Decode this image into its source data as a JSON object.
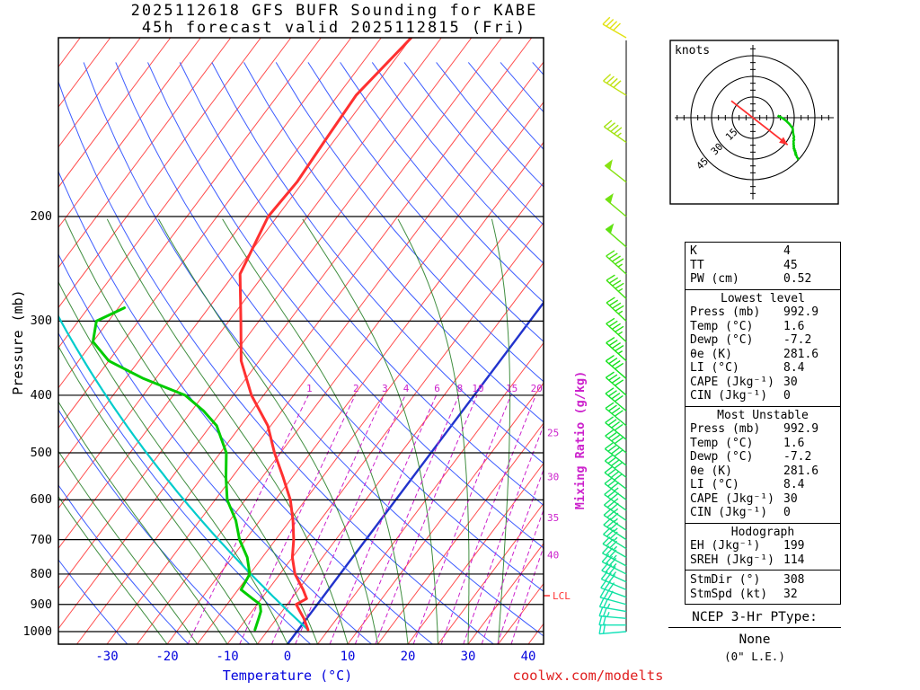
{
  "title": {
    "line1": "2025112618 GFS BUFR Sounding for KABE",
    "line2": "45h forecast valid 2025112815 (Fri)"
  },
  "axes": {
    "pressure_label": "Pressure (mb)",
    "temperature_label": "Temperature (°C)",
    "mixing_ratio_label": "Mixing Ratio (g/kg)",
    "lcl_label": "LCL"
  },
  "watermark": "coolwx.com/modelts",
  "hodograph_panel": {
    "units_label": "knots"
  },
  "stats": {
    "summary": [
      [
        "K",
        "4"
      ],
      [
        "TT",
        "45"
      ],
      [
        "PW (cm)",
        "0.52"
      ]
    ],
    "sections": [
      {
        "header": "Lowest level",
        "rows": [
          [
            "Press (mb)",
            "992.9"
          ],
          [
            "Temp (°C)",
            "1.6"
          ],
          [
            "Dewp (°C)",
            "-7.2"
          ],
          [
            "θe (K)",
            "281.6"
          ],
          [
            "LI (°C)",
            "8.4"
          ],
          [
            "CAPE (Jkg⁻¹)",
            "30"
          ],
          [
            "CIN (Jkg⁻¹)",
            "0"
          ]
        ]
      },
      {
        "header": "Most Unstable",
        "rows": [
          [
            "Press (mb)",
            "992.9"
          ],
          [
            "Temp (°C)",
            "1.6"
          ],
          [
            "Dewp (°C)",
            "-7.2"
          ],
          [
            "θe (K)",
            "281.6"
          ],
          [
            "LI (°C)",
            "8.4"
          ],
          [
            "CAPE (Jkg⁻¹)",
            "30"
          ],
          [
            "CIN (Jkg⁻¹)",
            "0"
          ]
        ]
      },
      {
        "header": "Hodograph",
        "rows": [
          [
            "EH (Jkg⁻¹)",
            "199"
          ],
          [
            "SREH (Jkg⁻¹)",
            "114"
          ]
        ],
        "rows_after_divider": [
          [
            "StmDir (°)",
            "308"
          ],
          [
            "StmSpd (kt)",
            "32"
          ]
        ]
      }
    ]
  },
  "ptype": {
    "title": "NCEP 3-Hr PType:",
    "value": "None",
    "note": "(0\" L.E.)"
  },
  "chart_data": {
    "type": "line",
    "subtype": "skew-t log-p sounding",
    "title": "2025112618 GFS BUFR Sounding for KABE — 45h forecast valid 2025112815 (Fri)",
    "xlabel": "Temperature (°C)",
    "ylabel": "Pressure (mb)",
    "x_range_c": [
      -40,
      45
    ],
    "pressure_range_mb": [
      100,
      1050
    ],
    "pressure_gridlines": [
      200,
      300,
      400,
      500,
      600,
      700,
      800,
      900,
      1000
    ],
    "temperature_ticks": [
      -30,
      -20,
      -10,
      0,
      10,
      20,
      30,
      40
    ],
    "mixing_ratio_inline_labels": [
      1,
      2,
      3,
      4,
      6,
      8,
      10,
      15,
      20
    ],
    "mixing_ratio_edge_labels": [
      25,
      30,
      35,
      40
    ],
    "lcl_mb": 870,
    "parcel": {
      "surface_pressure_mb": 992.9,
      "surface_temp_c": 1.6,
      "surface_dewp_c": -7.2
    },
    "series": [
      {
        "name": "Temperature",
        "color": "#ff3030",
        "points": [
          [
            992.9,
            1.6
          ],
          [
            950,
            -0.5
          ],
          [
            925,
            -2.0
          ],
          [
            900,
            -3.5
          ],
          [
            880,
            -2.5
          ],
          [
            850,
            -4.2
          ],
          [
            800,
            -7.5
          ],
          [
            750,
            -10.0
          ],
          [
            700,
            -12.0
          ],
          [
            650,
            -14.5
          ],
          [
            600,
            -17.5
          ],
          [
            550,
            -21.5
          ],
          [
            500,
            -26.0
          ],
          [
            450,
            -30.5
          ],
          [
            400,
            -37.0
          ],
          [
            350,
            -43.0
          ],
          [
            300,
            -48.0
          ],
          [
            250,
            -54.0
          ],
          [
            200,
            -56.5
          ],
          [
            175,
            -56.0
          ],
          [
            150,
            -56.5
          ],
          [
            125,
            -57.0
          ],
          [
            100,
            -55.0
          ]
        ]
      },
      {
        "name": "Dewpoint",
        "color": "#00cc00",
        "points": [
          [
            992.9,
            -7.2
          ],
          [
            950,
            -8.0
          ],
          [
            925,
            -8.5
          ],
          [
            900,
            -9.5
          ],
          [
            880,
            -11.5
          ],
          [
            850,
            -14.5
          ],
          [
            800,
            -15.0
          ],
          [
            750,
            -17.5
          ],
          [
            700,
            -21.0
          ],
          [
            650,
            -24.0
          ],
          [
            600,
            -28.0
          ],
          [
            550,
            -31.0
          ],
          [
            500,
            -34.0
          ],
          [
            450,
            -39.0
          ],
          [
            425,
            -43.0
          ],
          [
            400,
            -48.0
          ],
          [
            375,
            -57.0
          ],
          [
            350,
            -65.0
          ],
          [
            325,
            -70.0
          ],
          [
            300,
            -72.0
          ],
          [
            285,
            -69.0
          ]
        ]
      },
      {
        "name": "Surface parcel dry adiabat",
        "color": "#00cccc",
        "from_parcel": true
      }
    ],
    "wind_barbs": [
      [
        1000,
        265,
        18
      ],
      [
        975,
        270,
        21
      ],
      [
        950,
        275,
        24
      ],
      [
        925,
        280,
        27
      ],
      [
        900,
        285,
        30
      ],
      [
        875,
        290,
        31
      ],
      [
        850,
        293,
        32
      ],
      [
        825,
        295,
        33
      ],
      [
        800,
        297,
        33
      ],
      [
        775,
        298,
        34
      ],
      [
        750,
        300,
        34
      ],
      [
        725,
        302,
        35
      ],
      [
        700,
        303,
        35
      ],
      [
        675,
        304,
        36
      ],
      [
        650,
        305,
        36
      ],
      [
        625,
        306,
        37
      ],
      [
        600,
        307,
        37
      ],
      [
        575,
        307,
        38
      ],
      [
        550,
        308,
        38
      ],
      [
        525,
        308,
        39
      ],
      [
        500,
        309,
        39
      ],
      [
        475,
        309,
        40
      ],
      [
        450,
        310,
        40
      ],
      [
        425,
        310,
        41
      ],
      [
        400,
        311,
        41
      ],
      [
        375,
        311,
        42
      ],
      [
        350,
        312,
        43
      ],
      [
        325,
        312,
        44
      ],
      [
        300,
        313,
        45
      ],
      [
        275,
        313,
        46
      ],
      [
        250,
        312,
        47
      ],
      [
        225,
        311,
        48
      ],
      [
        200,
        310,
        50
      ],
      [
        175,
        308,
        48
      ],
      [
        150,
        305,
        45
      ],
      [
        125,
        302,
        42
      ],
      [
        100,
        300,
        40
      ]
    ],
    "hodograph": {
      "rings_kt": [
        15,
        30,
        45
      ],
      "storm_motion": {
        "dir_deg": 308,
        "spd_kt": 32
      }
    }
  }
}
